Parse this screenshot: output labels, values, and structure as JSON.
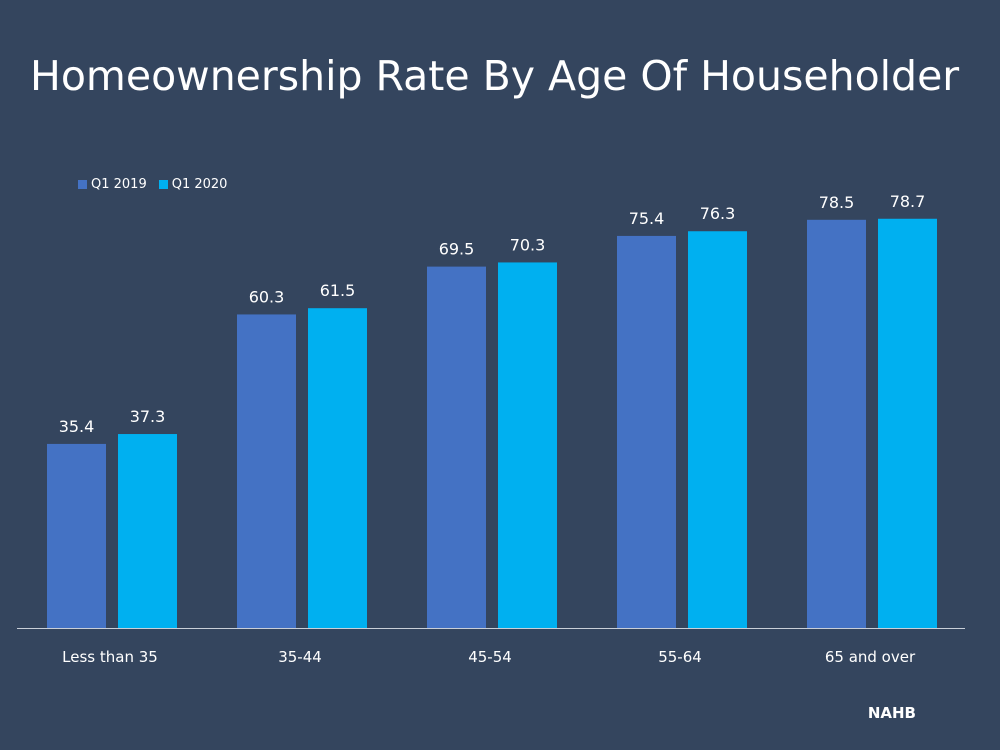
{
  "chart_data": {
    "type": "bar",
    "title": "Homeownership Rate By Age Of Householder",
    "categories": [
      "Less than 35",
      "35-44",
      "45-54",
      "55-64",
      "65 and over"
    ],
    "series": [
      {
        "name": "Q1 2019",
        "color": "#4472c4",
        "values": [
          35.4,
          60.3,
          69.5,
          75.4,
          78.5
        ]
      },
      {
        "name": "Q1 2020",
        "color": "#00b0f0",
        "values": [
          37.3,
          61.5,
          70.3,
          76.3,
          78.7
        ]
      }
    ],
    "ylim": [
      0,
      100
    ],
    "grid": false,
    "legend_position": "top-left",
    "source": "NAHB",
    "xlabel": "",
    "ylabel": ""
  }
}
